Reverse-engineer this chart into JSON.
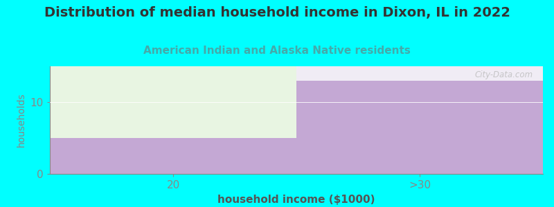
{
  "title": "Distribution of median household income in Dixon, IL in 2022",
  "subtitle": "American Indian and Alaska Native residents",
  "xlabel": "household income ($1000)",
  "ylabel": "households",
  "background_color": "#00FFFF",
  "plot_bg_color": "#FFFFFF",
  "categories": [
    "20",
    ">30"
  ],
  "bar_values": [
    5,
    13
  ],
  "bar_color": "#C4A8D4",
  "top_color_left": "#E8F5E2",
  "top_color_right": "#F0ECF5",
  "ylim_max": 15,
  "yticks": [
    0,
    10
  ],
  "title_fontsize": 14,
  "subtitle_fontsize": 11,
  "title_color": "#333333",
  "subtitle_color": "#44AAAA",
  "axis_color": "#888888",
  "label_color": "#555555",
  "watermark": "City-Data.com",
  "bar_split": 0.5
}
